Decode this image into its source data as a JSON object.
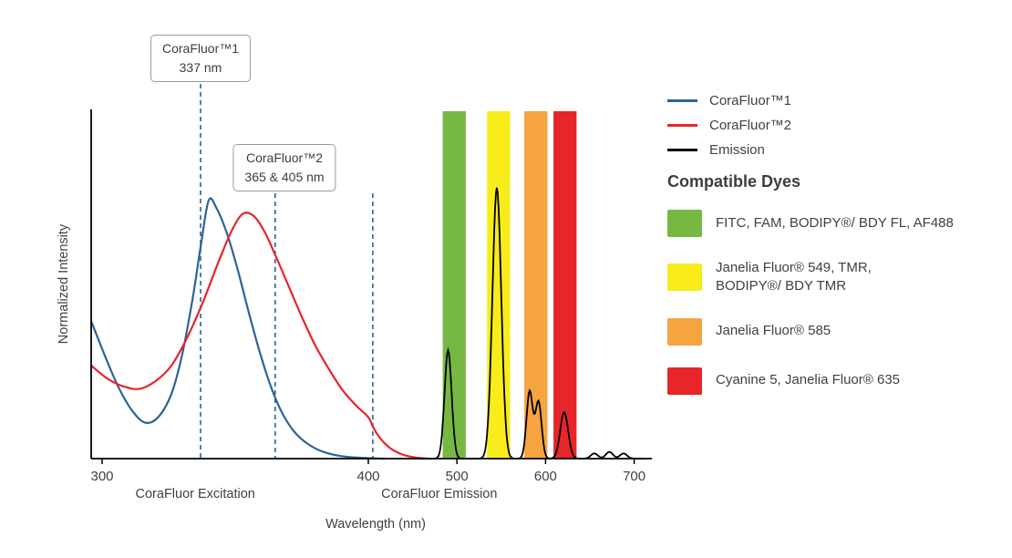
{
  "colors": {
    "corafluor1": "#2a6496",
    "corafluor2": "#e8242b",
    "emission": "#000000",
    "band_green": "#77b843",
    "band_yellow": "#f8ec1b",
    "band_orange": "#f5a440",
    "band_red": "#e62629",
    "axis": "#000000",
    "text": "#414042",
    "dashed_line": "#2a6496",
    "callout_border": "#9b9b9b"
  },
  "callouts": [
    {
      "title": "CoraFluor™1",
      "value": "337 nm",
      "lines_nm": [
        337
      ]
    },
    {
      "title": "CoraFluor™2",
      "value": "365 & 405 nm",
      "lines_nm": [
        365,
        405
      ]
    }
  ],
  "legend": {
    "series": [
      {
        "name": "CoraFluor™1",
        "color_key": "corafluor1"
      },
      {
        "name": "CoraFluor™2",
        "color_key": "corafluor2"
      },
      {
        "name": "Emission",
        "color_key": "emission"
      }
    ],
    "dyes_heading": "Compatible Dyes",
    "dyes": [
      {
        "color_key": "band_green",
        "label": "FITC, FAM, BODIPY®/ BDY FL, AF488",
        "label2": ""
      },
      {
        "color_key": "band_yellow",
        "label": "Janelia Fluor® 549, TMR,",
        "label2": "BODIPY®/ BDY TMR"
      },
      {
        "color_key": "band_orange",
        "label": "Janelia Fluor® 585",
        "label2": ""
      },
      {
        "color_key": "band_red",
        "label": "Cyanine 5, Janelia Fluor® 635",
        "label2": ""
      }
    ]
  },
  "chart_data": {
    "type": "line",
    "title": "",
    "xlabel": "Wavelength (nm)",
    "ylabel": "Normalized Intensity",
    "x_ticks": [
      300,
      400,
      500,
      600,
      700
    ],
    "x_axis_note": "300-400 nm region stretched ~3x relative to 400-700 nm",
    "ylim": [
      0,
      1.35
    ],
    "grid": false,
    "legend_position": "right",
    "region_labels": [
      {
        "label": "CoraFluor Excitation",
        "center_nm": 335
      },
      {
        "label": "CoraFluor Emission",
        "center_nm": 480
      }
    ],
    "dashed_markers_nm": [
      337,
      365,
      405
    ],
    "bands": [
      {
        "name": "FITC / FAM / BODIPY FL / AF488 window",
        "color_key": "band_green",
        "from_nm": 484,
        "to_nm": 510
      },
      {
        "name": "JF549 / TMR / BODIPY TMR window",
        "color_key": "band_yellow",
        "from_nm": 534,
        "to_nm": 560
      },
      {
        "name": "JF585 window",
        "color_key": "band_orange",
        "from_nm": 576,
        "to_nm": 602
      },
      {
        "name": "Cyanine 5 / JF635 window",
        "color_key": "band_red",
        "from_nm": 609,
        "to_nm": 635
      }
    ],
    "series": [
      {
        "name": "CoraFluor™1",
        "kind": "excitation",
        "color_key": "corafluor1",
        "points": [
          [
            296,
            0.53
          ],
          [
            301,
            0.4
          ],
          [
            306,
            0.28
          ],
          [
            311,
            0.19
          ],
          [
            316,
            0.14
          ],
          [
            321,
            0.16
          ],
          [
            326,
            0.25
          ],
          [
            330,
            0.4
          ],
          [
            334,
            0.62
          ],
          [
            337,
            0.82
          ],
          [
            340,
            1.0
          ],
          [
            343,
            0.97
          ],
          [
            347,
            0.87
          ],
          [
            351,
            0.73
          ],
          [
            355,
            0.57
          ],
          [
            359,
            0.42
          ],
          [
            363,
            0.29
          ],
          [
            367,
            0.19
          ],
          [
            371,
            0.12
          ],
          [
            375,
            0.075
          ],
          [
            380,
            0.04
          ],
          [
            385,
            0.02
          ],
          [
            391,
            0.008
          ],
          [
            398,
            0.003
          ],
          [
            408,
            0.001
          ],
          [
            418,
            0
          ]
        ]
      },
      {
        "name": "CoraFluor™2",
        "kind": "excitation",
        "color_key": "corafluor2",
        "points": [
          [
            296,
            0.36
          ],
          [
            302,
            0.31
          ],
          [
            308,
            0.28
          ],
          [
            314,
            0.27
          ],
          [
            320,
            0.3
          ],
          [
            326,
            0.36
          ],
          [
            332,
            0.47
          ],
          [
            338,
            0.61
          ],
          [
            344,
            0.77
          ],
          [
            349,
            0.89
          ],
          [
            353,
            0.95
          ],
          [
            357,
            0.94
          ],
          [
            361,
            0.88
          ],
          [
            365,
            0.79
          ],
          [
            370,
            0.67
          ],
          [
            375,
            0.55
          ],
          [
            380,
            0.44
          ],
          [
            385,
            0.35
          ],
          [
            390,
            0.27
          ],
          [
            395,
            0.21
          ],
          [
            400,
            0.16
          ],
          [
            405,
            0.125
          ],
          [
            410,
            0.095
          ],
          [
            416,
            0.068
          ],
          [
            422,
            0.048
          ],
          [
            428,
            0.033
          ],
          [
            435,
            0.021
          ],
          [
            442,
            0.012
          ],
          [
            450,
            0.006
          ],
          [
            459,
            0.002
          ],
          [
            468,
            0
          ]
        ]
      }
    ],
    "emission": {
      "name": "Emission",
      "color_key": "emission",
      "sample_range_nm": [
        452,
        710
      ],
      "peaks": [
        {
          "center_nm": 490,
          "height": 0.42,
          "sigma_nm": 4
        },
        {
          "center_nm": 545,
          "height": 1.05,
          "sigma_nm": 5
        },
        {
          "center_nm": 582,
          "height": 0.26,
          "sigma_nm": 3.5
        },
        {
          "center_nm": 592,
          "height": 0.22,
          "sigma_nm": 3.5
        },
        {
          "center_nm": 621,
          "height": 0.18,
          "sigma_nm": 4.5
        },
        {
          "center_nm": 655,
          "height": 0.02,
          "sigma_nm": 4
        },
        {
          "center_nm": 672,
          "height": 0.026,
          "sigma_nm": 4
        },
        {
          "center_nm": 688,
          "height": 0.02,
          "sigma_nm": 4
        }
      ]
    }
  }
}
